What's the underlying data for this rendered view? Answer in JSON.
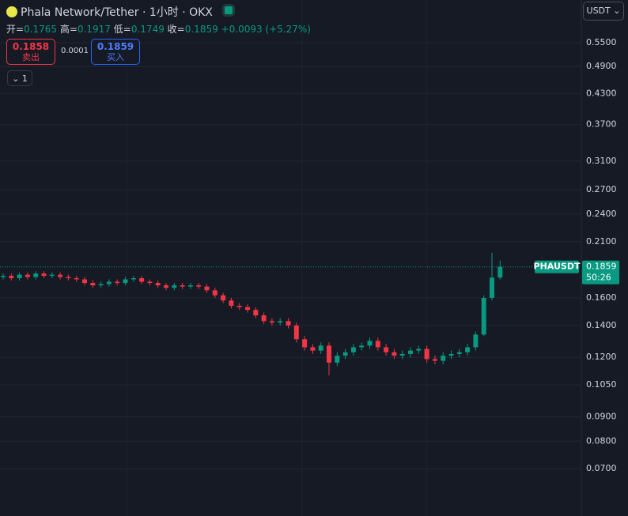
{
  "header": {
    "title": "Phala Network/Tether · 1小时 · OKX",
    "ohlc": {
      "open_label": "开=",
      "open": 0.1765,
      "high_label": "高=",
      "high": 0.1917,
      "low_label": "低=",
      "low": 0.1749,
      "close_label": "收=",
      "close": 0.1859,
      "change": "+0.0093 (+5.27%)"
    },
    "sell": {
      "price": 0.1858,
      "label": "卖出"
    },
    "spread": 0.0001,
    "buy": {
      "price": 0.1859,
      "label": "买入"
    },
    "collapse": "1",
    "currency_button": "USDT"
  },
  "chart_data": {
    "type": "candlestick",
    "symbol_label": "PHAUSDT",
    "open": [
      0.177,
      0.178,
      0.176,
      0.179,
      0.177,
      0.18,
      0.178,
      0.179,
      0.177,
      0.176,
      0.175,
      0.172,
      0.17,
      0.171,
      0.173,
      0.172,
      0.175,
      0.176,
      0.173,
      0.172,
      0.17,
      0.168,
      0.17,
      0.169,
      0.17,
      0.169,
      0.166,
      0.162,
      0.158,
      0.154,
      0.153,
      0.151,
      0.147,
      0.143,
      0.142,
      0.143,
      0.14,
      0.131,
      0.126,
      0.124,
      0.127,
      0.117,
      0.121,
      0.123,
      0.126,
      0.127,
      0.13,
      0.126,
      0.123,
      0.121,
      0.122,
      0.124,
      0.125,
      0.119,
      0.118,
      0.121,
      0.122,
      0.123,
      0.126,
      0.134,
      0.16,
      0.1765
    ],
    "high": [
      0.18,
      0.18,
      0.181,
      0.181,
      0.182,
      0.182,
      0.181,
      0.181,
      0.179,
      0.178,
      0.177,
      0.174,
      0.173,
      0.175,
      0.175,
      0.177,
      0.178,
      0.178,
      0.175,
      0.174,
      0.172,
      0.172,
      0.172,
      0.172,
      0.172,
      0.171,
      0.168,
      0.164,
      0.16,
      0.156,
      0.155,
      0.153,
      0.149,
      0.145,
      0.145,
      0.145,
      0.142,
      0.133,
      0.128,
      0.129,
      0.129,
      0.123,
      0.125,
      0.128,
      0.129,
      0.132,
      0.132,
      0.128,
      0.125,
      0.124,
      0.126,
      0.127,
      0.127,
      0.121,
      0.123,
      0.124,
      0.125,
      0.128,
      0.136,
      0.162,
      0.199,
      0.1917
    ],
    "low": [
      0.175,
      0.174,
      0.174,
      0.175,
      0.175,
      0.176,
      0.176,
      0.175,
      0.174,
      0.173,
      0.17,
      0.168,
      0.168,
      0.169,
      0.17,
      0.17,
      0.173,
      0.171,
      0.17,
      0.168,
      0.166,
      0.166,
      0.167,
      0.167,
      0.167,
      0.164,
      0.16,
      0.156,
      0.152,
      0.151,
      0.149,
      0.145,
      0.141,
      0.14,
      0.14,
      0.138,
      0.129,
      0.124,
      0.122,
      0.122,
      0.11,
      0.115,
      0.119,
      0.121,
      0.124,
      0.125,
      0.124,
      0.121,
      0.119,
      0.119,
      0.12,
      0.122,
      0.117,
      0.116,
      0.116,
      0.119,
      0.12,
      0.121,
      0.124,
      0.133,
      0.158,
      0.1749
    ],
    "close": [
      0.178,
      0.176,
      0.179,
      0.177,
      0.18,
      0.178,
      0.179,
      0.177,
      0.176,
      0.175,
      0.172,
      0.17,
      0.171,
      0.173,
      0.172,
      0.175,
      0.176,
      0.173,
      0.172,
      0.17,
      0.168,
      0.17,
      0.169,
      0.17,
      0.169,
      0.166,
      0.162,
      0.158,
      0.154,
      0.153,
      0.151,
      0.147,
      0.143,
      0.142,
      0.143,
      0.14,
      0.131,
      0.126,
      0.124,
      0.127,
      0.117,
      0.121,
      0.123,
      0.126,
      0.127,
      0.13,
      0.126,
      0.123,
      0.121,
      0.122,
      0.124,
      0.125,
      0.119,
      0.118,
      0.121,
      0.122,
      0.123,
      0.126,
      0.134,
      0.16,
      0.1765,
      0.1859
    ],
    "up_color": "#089981",
    "down_color": "#f23645",
    "log_scale": true,
    "grid": true,
    "ylim": [
      0.0557,
      0.676
    ],
    "yticks": [
      {
        "value": 0.55,
        "label": "0.5500"
      },
      {
        "value": 0.49,
        "label": "0.4900"
      },
      {
        "value": 0.43,
        "label": "0.4300"
      },
      {
        "value": 0.37,
        "label": "0.3700"
      },
      {
        "value": 0.31,
        "label": "0.3100"
      },
      {
        "value": 0.27,
        "label": "0.2700"
      },
      {
        "value": 0.24,
        "label": "0.2400"
      },
      {
        "value": 0.21,
        "label": "0.2100"
      },
      {
        "value": 0.16,
        "label": "0.1600"
      },
      {
        "value": 0.14,
        "label": "0.1400"
      },
      {
        "value": 0.12,
        "label": "0.1200"
      },
      {
        "value": 0.105,
        "label": "0.1050"
      },
      {
        "value": 0.09,
        "label": "0.0900"
      },
      {
        "value": 0.08,
        "label": "0.0800"
      },
      {
        "value": 0.07,
        "label": "0.0700"
      }
    ],
    "last_price": 0.1859,
    "countdown": "50:26"
  }
}
